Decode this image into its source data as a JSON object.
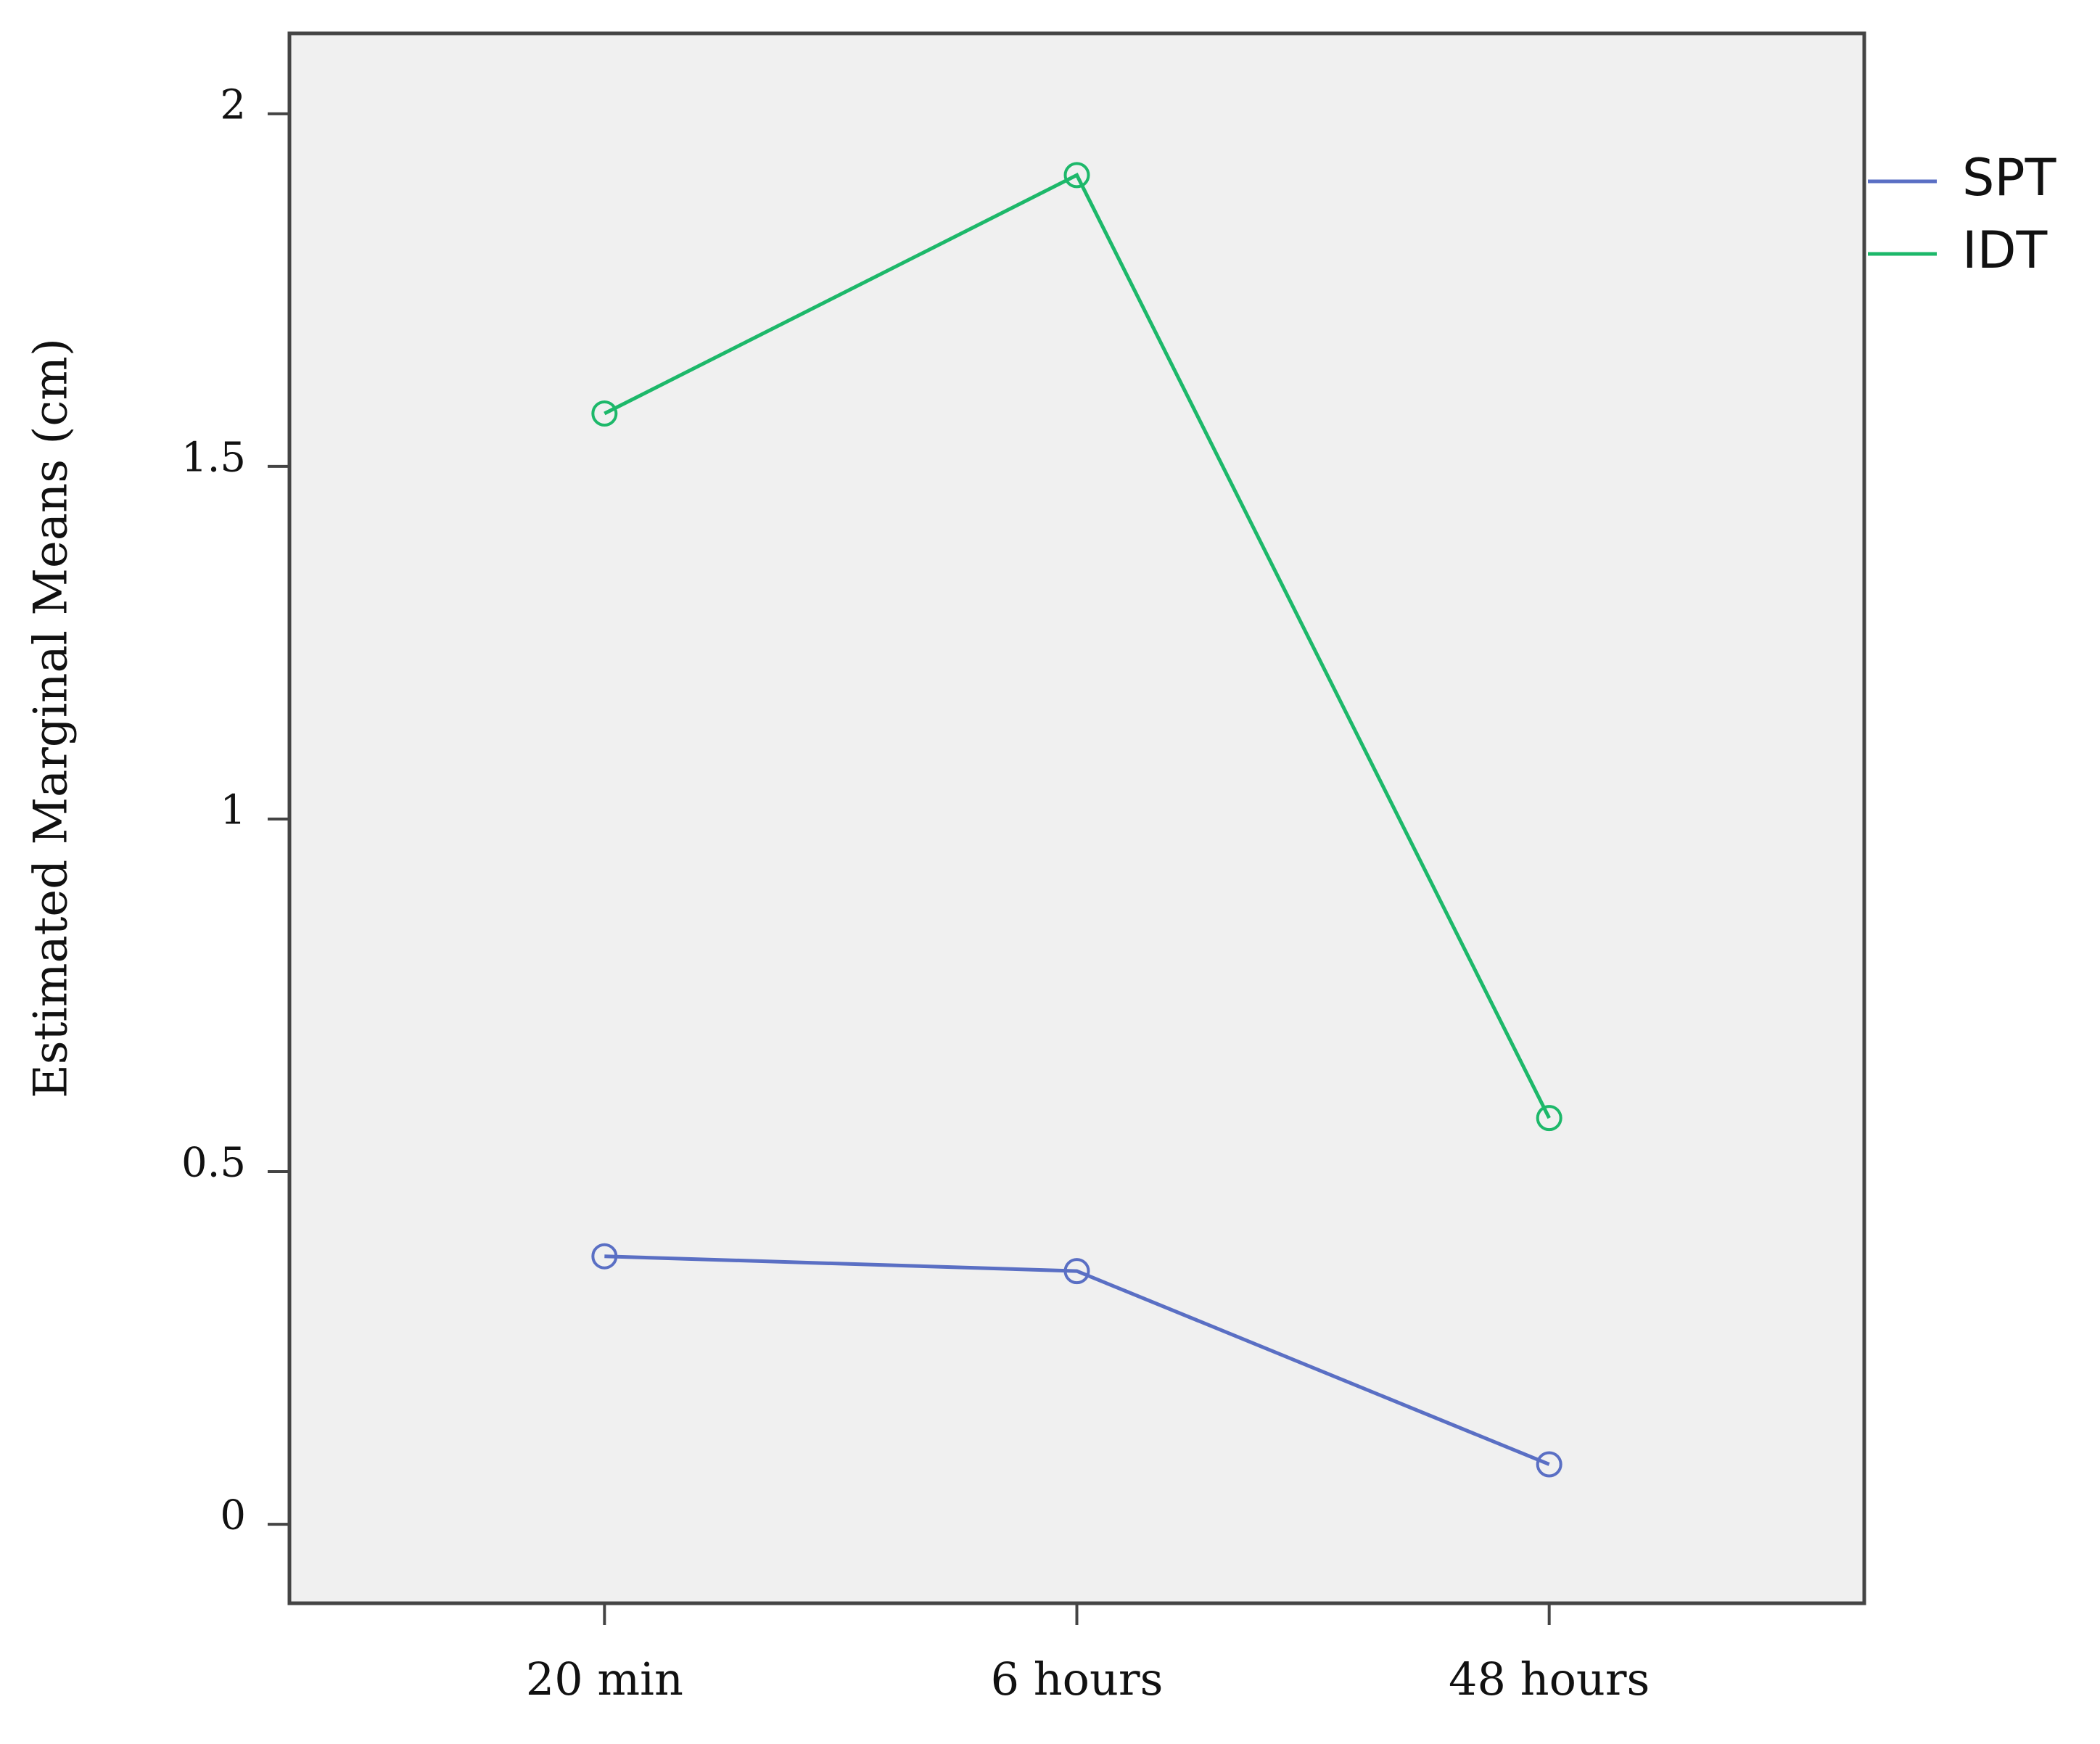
{
  "chart_data": {
    "type": "line",
    "y_label": "Estimated Marginal Means (cm)",
    "categories": [
      "20 min",
      "6 hours",
      "48 hours"
    ],
    "series": [
      {
        "name": "SPT",
        "color": "#5a6fc4",
        "values": [
          0.38,
          0.359,
          0.085
        ]
      },
      {
        "name": "IDT",
        "color": "#1db86a",
        "values": [
          1.575,
          1.913,
          0.576
        ]
      }
    ],
    "ylim": [
      -0.112,
      2.114
    ],
    "yticks": [
      0,
      0.5,
      1,
      1.5,
      2
    ],
    "grid": false,
    "legend": "right"
  }
}
